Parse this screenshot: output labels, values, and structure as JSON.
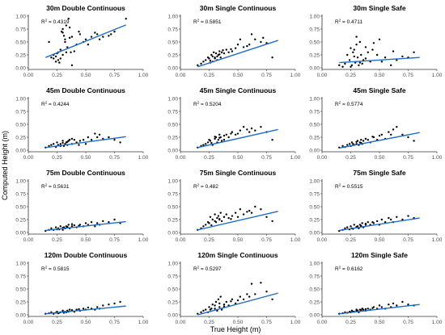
{
  "figure": {
    "y_axis_title": "Computed Height (m)",
    "x_axis_title": "True Height (m)",
    "colors": {
      "points": "#000000",
      "fit_line": "#1f6cc7",
      "axes": "#333333",
      "tick_labels": "#4d4d4d"
    },
    "r2_label_prefix": "R",
    "r2_label_sup": "2",
    "r2_label_sep": " = "
  },
  "chart_data": [
    {
      "type": "scatter",
      "title": "30m Double Continuous",
      "r2": "0.4319",
      "xlim": [
        0,
        1
      ],
      "ylim": [
        0,
        1
      ],
      "xticks": [
        "0.00",
        "0.25",
        "0.50",
        "0.75",
        "1.00"
      ],
      "yticks": [
        "0.00",
        "0.25",
        "0.50",
        "0.75",
        "1.00"
      ],
      "fit": {
        "x": [
          0.15,
          0.85
        ],
        "y": [
          0.2,
          0.83
        ]
      },
      "x": [
        0.18,
        0.2,
        0.22,
        0.24,
        0.25,
        0.26,
        0.27,
        0.28,
        0.29,
        0.3,
        0.3,
        0.31,
        0.32,
        0.33,
        0.34,
        0.35,
        0.36,
        0.37,
        0.38,
        0.4,
        0.42,
        0.45,
        0.48,
        0.5,
        0.55,
        0.6,
        0.62,
        0.65,
        0.7,
        0.72,
        0.75,
        0.85,
        0.22,
        0.26,
        0.3,
        0.33,
        0.36,
        0.28,
        0.24,
        0.32,
        0.38,
        0.44,
        0.52,
        0.58
      ],
      "y": [
        0.5,
        0.2,
        0.18,
        0.22,
        0.28,
        0.15,
        0.1,
        0.35,
        0.7,
        0.75,
        0.25,
        0.62,
        0.55,
        0.3,
        0.4,
        0.95,
        0.78,
        0.3,
        0.6,
        0.32,
        0.45,
        0.65,
        0.5,
        0.55,
        0.6,
        0.65,
        0.55,
        0.6,
        0.62,
        0.65,
        0.7,
        0.95,
        0.25,
        0.3,
        0.68,
        0.82,
        0.58,
        0.18,
        0.12,
        0.5,
        0.05,
        0.7,
        0.45,
        0.68
      ]
    },
    {
      "type": "scatter",
      "title": "30m Single Continuous",
      "r2": "0.5851",
      "xlim": [
        0,
        1
      ],
      "ylim": [
        0,
        1
      ],
      "xticks": [
        "0.00",
        "0.25",
        "0.50",
        "0.75",
        "1.00"
      ],
      "yticks": [
        "0.00",
        "0.25",
        "0.50",
        "0.75",
        "1.00"
      ],
      "fit": {
        "x": [
          0.15,
          0.85
        ],
        "y": [
          0.02,
          0.53
        ]
      },
      "x": [
        0.15,
        0.18,
        0.2,
        0.22,
        0.24,
        0.25,
        0.26,
        0.27,
        0.28,
        0.29,
        0.3,
        0.31,
        0.32,
        0.33,
        0.34,
        0.35,
        0.36,
        0.38,
        0.4,
        0.42,
        0.45,
        0.48,
        0.5,
        0.52,
        0.55,
        0.58,
        0.6,
        0.62,
        0.65,
        0.7,
        0.72,
        0.75,
        0.8,
        0.28,
        0.3,
        0.32,
        0.34,
        0.26,
        0.37,
        0.44
      ],
      "y": [
        0.05,
        0.08,
        0.12,
        0.15,
        0.2,
        0.18,
        0.1,
        0.25,
        0.22,
        0.3,
        0.2,
        0.28,
        0.15,
        0.25,
        0.32,
        0.2,
        0.3,
        0.28,
        0.35,
        0.3,
        0.32,
        0.38,
        0.45,
        0.55,
        0.4,
        0.42,
        0.45,
        0.65,
        0.55,
        0.5,
        0.58,
        0.48,
        0.2,
        0.12,
        0.18,
        0.22,
        0.26,
        0.14,
        0.34,
        0.36
      ]
    },
    {
      "type": "scatter",
      "title": "30m Single Safe",
      "r2": "0.4711",
      "xlim": [
        0,
        1
      ],
      "ylim": [
        0,
        1
      ],
      "xticks": [
        "0.00",
        "0.25",
        "0.50",
        "0.75",
        "1.00"
      ],
      "yticks": [
        "0.00",
        "0.25",
        "0.50",
        "0.75",
        "1.00"
      ],
      "fit": {
        "x": [
          0.15,
          0.85
        ],
        "y": [
          0.1,
          0.2
        ]
      },
      "x": [
        0.15,
        0.18,
        0.2,
        0.22,
        0.24,
        0.25,
        0.26,
        0.27,
        0.28,
        0.29,
        0.3,
        0.31,
        0.32,
        0.33,
        0.34,
        0.35,
        0.36,
        0.38,
        0.4,
        0.42,
        0.45,
        0.48,
        0.5,
        0.55,
        0.6,
        0.62,
        0.65,
        0.7,
        0.75,
        0.8,
        0.25,
        0.28,
        0.3,
        0.33,
        0.38,
        0.44,
        0.52
      ],
      "y": [
        0.05,
        0.02,
        0.08,
        0.25,
        0.15,
        0.02,
        0.05,
        0.3,
        0.35,
        0.1,
        0.45,
        0.2,
        0.05,
        0.5,
        0.25,
        0.08,
        0.15,
        0.4,
        0.3,
        0.12,
        0.48,
        0.25,
        0.55,
        0.2,
        0.05,
        0.32,
        0.15,
        0.22,
        0.2,
        0.3,
        0.38,
        0.22,
        0.6,
        0.1,
        0.18,
        0.35,
        0.12
      ]
    },
    {
      "type": "scatter",
      "title": "45m Double Continuous",
      "r2": "0.4244",
      "xlim": [
        0,
        1
      ],
      "ylim": [
        0,
        1
      ],
      "xticks": [
        "0.00",
        "0.25",
        "0.50",
        "0.75",
        "1.00"
      ],
      "yticks": [
        "0.00",
        "0.25",
        "0.50",
        "0.75",
        "1.00"
      ],
      "fit": {
        "x": [
          0.15,
          0.85
        ],
        "y": [
          0.05,
          0.26
        ]
      },
      "x": [
        0.15,
        0.18,
        0.2,
        0.22,
        0.24,
        0.25,
        0.26,
        0.28,
        0.3,
        0.31,
        0.32,
        0.33,
        0.34,
        0.35,
        0.36,
        0.38,
        0.4,
        0.42,
        0.45,
        0.48,
        0.5,
        0.52,
        0.55,
        0.58,
        0.6,
        0.62,
        0.65,
        0.7,
        0.75,
        0.8,
        0.28,
        0.3,
        0.34,
        0.38,
        0.44
      ],
      "y": [
        0.05,
        0.08,
        0.1,
        0.12,
        0.06,
        0.15,
        0.1,
        0.12,
        0.18,
        0.08,
        0.12,
        0.15,
        0.1,
        0.18,
        0.2,
        0.12,
        0.2,
        0.15,
        0.18,
        0.2,
        0.12,
        0.25,
        0.2,
        0.32,
        0.25,
        0.3,
        0.22,
        0.25,
        0.2,
        0.15,
        0.08,
        0.14,
        0.16,
        0.22,
        0.1
      ]
    },
    {
      "type": "scatter",
      "title": "45m Single Continuous",
      "r2": "0.5204",
      "xlim": [
        0,
        1
      ],
      "ylim": [
        0,
        1
      ],
      "xticks": [
        "0.00",
        "0.25",
        "0.50",
        "0.75",
        "1.00"
      ],
      "yticks": [
        "0.00",
        "0.25",
        "0.50",
        "0.75",
        "1.00"
      ],
      "fit": {
        "x": [
          0.15,
          0.85
        ],
        "y": [
          0.05,
          0.4
        ]
      },
      "x": [
        0.15,
        0.18,
        0.2,
        0.22,
        0.24,
        0.25,
        0.26,
        0.28,
        0.3,
        0.31,
        0.32,
        0.33,
        0.34,
        0.35,
        0.36,
        0.38,
        0.4,
        0.42,
        0.45,
        0.48,
        0.5,
        0.52,
        0.55,
        0.58,
        0.6,
        0.62,
        0.65,
        0.7,
        0.75,
        0.8,
        0.27,
        0.3,
        0.34,
        0.38,
        0.44
      ],
      "y": [
        0.05,
        0.08,
        0.1,
        0.12,
        0.15,
        0.2,
        0.18,
        0.1,
        0.22,
        0.25,
        0.15,
        0.2,
        0.3,
        0.25,
        0.18,
        0.28,
        0.3,
        0.25,
        0.35,
        0.3,
        0.32,
        0.38,
        0.45,
        0.4,
        0.35,
        0.42,
        0.38,
        0.45,
        0.35,
        0.2,
        0.14,
        0.26,
        0.24,
        0.2,
        0.32
      ]
    },
    {
      "type": "scatter",
      "title": "45m Single Safe",
      "r2": "0.5774",
      "xlim": [
        0,
        1
      ],
      "ylim": [
        0,
        1
      ],
      "xticks": [
        "0.00",
        "0.25",
        "0.50",
        "0.75",
        "1.00"
      ],
      "yticks": [
        "0.00",
        "0.25",
        "0.50",
        "0.75",
        "1.00"
      ],
      "fit": {
        "x": [
          0.15,
          0.85
        ],
        "y": [
          0.04,
          0.34
        ]
      },
      "x": [
        0.15,
        0.18,
        0.2,
        0.22,
        0.24,
        0.25,
        0.26,
        0.28,
        0.3,
        0.31,
        0.32,
        0.33,
        0.34,
        0.35,
        0.36,
        0.38,
        0.4,
        0.42,
        0.45,
        0.48,
        0.5,
        0.52,
        0.55,
        0.58,
        0.6,
        0.62,
        0.65,
        0.7,
        0.75,
        0.8,
        0.27,
        0.3,
        0.34,
        0.38,
        0.44
      ],
      "y": [
        0.05,
        0.08,
        0.06,
        0.1,
        0.12,
        0.08,
        0.15,
        0.1,
        0.12,
        0.18,
        0.1,
        0.15,
        0.2,
        0.12,
        0.18,
        0.22,
        0.2,
        0.15,
        0.25,
        0.2,
        0.28,
        0.3,
        0.22,
        0.35,
        0.3,
        0.4,
        0.45,
        0.3,
        0.25,
        0.18,
        0.12,
        0.16,
        0.14,
        0.22,
        0.26
      ]
    },
    {
      "type": "scatter",
      "title": "75m Double Continuous",
      "r2": "0.5631",
      "xlim": [
        0,
        1
      ],
      "ylim": [
        0,
        1
      ],
      "xticks": [
        "0.00",
        "0.25",
        "0.50",
        "0.75",
        "1.00"
      ],
      "yticks": [
        "0.00",
        "0.25",
        "0.50",
        "0.75",
        "1.00"
      ],
      "fit": {
        "x": [
          0.15,
          0.85
        ],
        "y": [
          0.04,
          0.21
        ]
      },
      "x": [
        0.15,
        0.18,
        0.2,
        0.22,
        0.24,
        0.25,
        0.26,
        0.28,
        0.3,
        0.31,
        0.32,
        0.33,
        0.34,
        0.35,
        0.36,
        0.38,
        0.4,
        0.42,
        0.45,
        0.48,
        0.5,
        0.52,
        0.55,
        0.58,
        0.6,
        0.62,
        0.65,
        0.7,
        0.75,
        0.8,
        0.27,
        0.3,
        0.34,
        0.38,
        0.44
      ],
      "y": [
        0.03,
        0.05,
        0.08,
        0.05,
        0.1,
        0.06,
        0.08,
        0.12,
        0.05,
        0.1,
        0.08,
        0.12,
        0.1,
        0.15,
        0.08,
        0.12,
        0.14,
        0.1,
        0.15,
        0.12,
        0.18,
        0.15,
        0.2,
        0.12,
        0.18,
        0.15,
        0.22,
        0.2,
        0.25,
        0.18,
        0.06,
        0.09,
        0.11,
        0.16,
        0.13
      ]
    },
    {
      "type": "scatter",
      "title": "75m Single Continuous",
      "r2": "0.482",
      "xlim": [
        0,
        1
      ],
      "ylim": [
        0,
        1
      ],
      "xticks": [
        "0.00",
        "0.25",
        "0.50",
        "0.75",
        "1.00"
      ],
      "yticks": [
        "0.00",
        "0.25",
        "0.50",
        "0.75",
        "1.00"
      ],
      "fit": {
        "x": [
          0.15,
          0.85
        ],
        "y": [
          0.05,
          0.41
        ]
      },
      "x": [
        0.15,
        0.18,
        0.2,
        0.22,
        0.24,
        0.25,
        0.26,
        0.28,
        0.3,
        0.31,
        0.32,
        0.33,
        0.34,
        0.35,
        0.36,
        0.38,
        0.4,
        0.42,
        0.45,
        0.48,
        0.5,
        0.52,
        0.55,
        0.58,
        0.6,
        0.62,
        0.65,
        0.7,
        0.75,
        0.8,
        0.27,
        0.3,
        0.34,
        0.38,
        0.44
      ],
      "y": [
        0.05,
        0.08,
        0.12,
        0.15,
        0.2,
        0.18,
        0.3,
        0.25,
        0.35,
        0.2,
        0.28,
        0.32,
        0.25,
        0.38,
        0.22,
        0.3,
        0.35,
        0.28,
        0.32,
        0.38,
        0.3,
        0.45,
        0.35,
        0.4,
        0.42,
        0.38,
        0.5,
        0.45,
        0.3,
        0.22,
        0.14,
        0.22,
        0.26,
        0.3,
        0.26
      ]
    },
    {
      "type": "scatter",
      "title": "75m Single Safe",
      "r2": "0.5515",
      "xlim": [
        0,
        1
      ],
      "ylim": [
        0,
        1
      ],
      "xticks": [
        "0.00",
        "0.25",
        "0.50",
        "0.75",
        "1.00"
      ],
      "yticks": [
        "0.00",
        "0.25",
        "0.50",
        "0.75",
        "1.00"
      ],
      "fit": {
        "x": [
          0.15,
          0.85
        ],
        "y": [
          0.04,
          0.28
        ]
      },
      "x": [
        0.15,
        0.18,
        0.2,
        0.22,
        0.24,
        0.25,
        0.26,
        0.28,
        0.3,
        0.31,
        0.32,
        0.33,
        0.34,
        0.35,
        0.36,
        0.38,
        0.4,
        0.42,
        0.45,
        0.48,
        0.5,
        0.52,
        0.55,
        0.58,
        0.6,
        0.62,
        0.65,
        0.7,
        0.75,
        0.8,
        0.27,
        0.3,
        0.34,
        0.38,
        0.44
      ],
      "y": [
        0.03,
        0.05,
        0.08,
        0.1,
        0.06,
        0.12,
        0.08,
        0.15,
        0.1,
        0.12,
        0.08,
        0.15,
        0.12,
        0.18,
        0.1,
        0.15,
        0.2,
        0.15,
        0.18,
        0.22,
        0.15,
        0.25,
        0.2,
        0.28,
        0.25,
        0.2,
        0.3,
        0.25,
        0.32,
        0.28,
        0.07,
        0.11,
        0.13,
        0.17,
        0.2
      ]
    },
    {
      "type": "scatter",
      "title": "120m Double Continuous",
      "r2": "0.5815",
      "xlim": [
        0,
        1
      ],
      "ylim": [
        0,
        1
      ],
      "xticks": [
        "0.00",
        "0.25",
        "0.50",
        "0.75",
        "1.00"
      ],
      "yticks": [
        "0.00",
        "0.25",
        "0.50",
        "0.75",
        "1.00"
      ],
      "fit": {
        "x": [
          0.15,
          0.85
        ],
        "y": [
          0.02,
          0.17
        ]
      },
      "x": [
        0.15,
        0.18,
        0.2,
        0.22,
        0.24,
        0.25,
        0.26,
        0.28,
        0.3,
        0.31,
        0.32,
        0.33,
        0.34,
        0.35,
        0.36,
        0.38,
        0.4,
        0.42,
        0.45,
        0.48,
        0.5,
        0.52,
        0.55,
        0.58,
        0.6,
        0.62,
        0.65,
        0.7,
        0.75,
        0.8,
        0.27,
        0.3,
        0.34,
        0.38,
        0.44
      ],
      "y": [
        0.02,
        0.03,
        0.05,
        0.02,
        0.04,
        0.06,
        0.03,
        0.05,
        0.08,
        0.04,
        0.06,
        0.05,
        0.08,
        0.06,
        0.1,
        0.08,
        0.06,
        0.1,
        0.08,
        0.12,
        0.1,
        0.14,
        0.12,
        0.1,
        0.15,
        0.12,
        0.18,
        0.2,
        0.22,
        0.25,
        0.04,
        0.06,
        0.07,
        0.09,
        0.11
      ]
    },
    {
      "type": "scatter",
      "title": "120m Single Continuous",
      "r2": "0.5297",
      "xlim": [
        0,
        1
      ],
      "ylim": [
        0,
        1
      ],
      "xticks": [
        "0.00",
        "0.25",
        "0.50",
        "0.75",
        "1.00"
      ],
      "yticks": [
        "0.00",
        "0.25",
        "0.50",
        "0.75",
        "1.00"
      ],
      "fit": {
        "x": [
          0.15,
          0.85
        ],
        "y": [
          0.0,
          0.42
        ]
      },
      "x": [
        0.15,
        0.18,
        0.2,
        0.22,
        0.24,
        0.25,
        0.26,
        0.28,
        0.3,
        0.31,
        0.32,
        0.33,
        0.34,
        0.35,
        0.36,
        0.38,
        0.4,
        0.42,
        0.45,
        0.48,
        0.5,
        0.52,
        0.55,
        0.58,
        0.6,
        0.62,
        0.65,
        0.7,
        0.75,
        0.8,
        0.27,
        0.3,
        0.34,
        0.38,
        0.44
      ],
      "y": [
        0.02,
        0.05,
        0.08,
        0.1,
        0.05,
        0.15,
        0.1,
        0.2,
        0.12,
        0.25,
        0.08,
        0.3,
        0.15,
        0.35,
        0.1,
        0.2,
        0.25,
        0.18,
        0.3,
        0.22,
        0.28,
        0.35,
        0.3,
        0.4,
        0.35,
        0.6,
        0.4,
        0.62,
        0.45,
        0.3,
        0.12,
        0.18,
        0.22,
        0.16,
        0.26
      ]
    },
    {
      "type": "scatter",
      "title": "120m Single Safe",
      "r2": "0.6162",
      "xlim": [
        0,
        1
      ],
      "ylim": [
        0,
        1
      ],
      "xticks": [
        "0.00",
        "0.25",
        "0.50",
        "0.75",
        "1.00"
      ],
      "yticks": [
        "0.00",
        "0.25",
        "0.50",
        "0.75",
        "1.00"
      ],
      "fit": {
        "x": [
          0.15,
          0.85
        ],
        "y": [
          0.02,
          0.2
        ]
      },
      "x": [
        0.15,
        0.18,
        0.2,
        0.22,
        0.24,
        0.25,
        0.26,
        0.28,
        0.3,
        0.31,
        0.32,
        0.33,
        0.34,
        0.35,
        0.36,
        0.38,
        0.4,
        0.42,
        0.45,
        0.48,
        0.5,
        0.52,
        0.55,
        0.58,
        0.6,
        0.62,
        0.65,
        0.7,
        0.75,
        0.8,
        0.27,
        0.3,
        0.34,
        0.38,
        0.44
      ],
      "y": [
        0.02,
        0.03,
        0.05,
        0.04,
        0.06,
        0.05,
        0.08,
        0.06,
        0.1,
        0.08,
        0.05,
        0.1,
        0.08,
        0.12,
        0.1,
        0.08,
        0.12,
        0.1,
        0.15,
        0.12,
        0.18,
        0.15,
        0.12,
        0.2,
        0.15,
        0.22,
        0.18,
        0.25,
        0.2,
        0.18,
        0.06,
        0.08,
        0.09,
        0.11,
        0.13
      ]
    }
  ]
}
